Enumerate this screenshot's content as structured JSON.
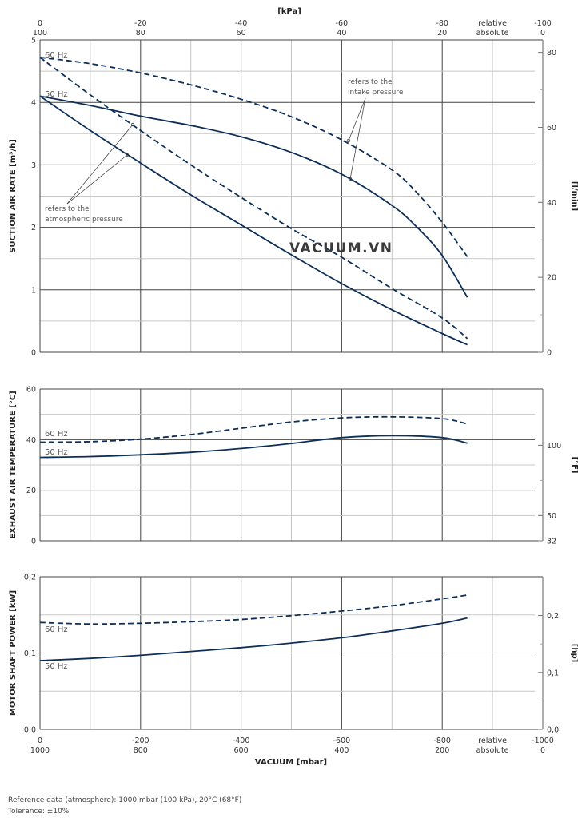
{
  "chart_data": [
    {
      "type": "line",
      "id": "suction",
      "title": "",
      "ylabel": "SUCTION AIR RATE  [m³/h]",
      "ylabel_right": "[l/min]",
      "xlabel_top": "[kPa]",
      "ylim": [
        0,
        5
      ],
      "yticks": [
        "0",
        "1",
        "2",
        "3",
        "4",
        "5"
      ],
      "yticks_right": [
        {
          "label": "0",
          "value": 0
        },
        {
          "label": "20",
          "value": 20
        },
        {
          "label": "40",
          "value": 40
        },
        {
          "label": "60",
          "value": 60
        },
        {
          "label": "80",
          "value": 80
        }
      ],
      "xlim": [
        0,
        -1000
      ],
      "top_ticks": [
        {
          "x": 0,
          "rel": "0",
          "abs": "100"
        },
        {
          "x": -200,
          "rel": "-20",
          "abs": "80"
        },
        {
          "x": -400,
          "rel": "-40",
          "abs": "60"
        },
        {
          "x": -600,
          "rel": "-60",
          "abs": "40"
        },
        {
          "x": -800,
          "rel": "-80",
          "abs": "20"
        },
        {
          "x": -900,
          "rel": "relative",
          "abs": "absolute"
        },
        {
          "x": -1000,
          "rel": "-100",
          "abs": "0"
        }
      ],
      "series": [
        {
          "name": "60 Hz (intake pressure)",
          "style": "dashed",
          "x": [
            0,
            -100,
            -200,
            -300,
            -400,
            -500,
            -600,
            -700,
            -750,
            -800,
            -850
          ],
          "values": [
            4.72,
            4.62,
            4.47,
            4.28,
            4.05,
            3.77,
            3.4,
            2.92,
            2.55,
            2.08,
            1.53
          ]
        },
        {
          "name": "50 Hz (intake pressure)",
          "style": "solid",
          "x": [
            0,
            -100,
            -200,
            -300,
            -400,
            -500,
            -600,
            -700,
            -750,
            -800,
            -850
          ],
          "values": [
            4.1,
            3.95,
            3.78,
            3.63,
            3.45,
            3.2,
            2.85,
            2.35,
            2.0,
            1.55,
            0.88
          ]
        },
        {
          "name": "60 Hz (atmospheric pressure)",
          "style": "dashed",
          "x": [
            0,
            -100,
            -200,
            -300,
            -400,
            -500,
            -600,
            -700,
            -800,
            -850
          ],
          "values": [
            4.72,
            4.12,
            3.55,
            3.0,
            2.48,
            1.98,
            1.52,
            1.02,
            0.55,
            0.22
          ]
        },
        {
          "name": "50 Hz (atmospheric pressure)",
          "style": "solid",
          "x": [
            0,
            -100,
            -200,
            -300,
            -400,
            -500,
            -600,
            -700,
            -800,
            -850
          ],
          "values": [
            4.1,
            3.55,
            3.03,
            2.52,
            2.04,
            1.56,
            1.1,
            0.68,
            0.3,
            0.12
          ]
        }
      ],
      "annotations": {
        "intake_line1": "refers to the",
        "intake_line2": "intake pressure",
        "atm_line1": "refers to the",
        "atm_line2": "atmospheric pressure",
        "label_60": "60 Hz",
        "label_50": "50 Hz"
      }
    },
    {
      "type": "line",
      "id": "temperature",
      "ylabel": "EXHAUST AIR TEMPERATURE  [°C]",
      "ylabel_right": "[°F]",
      "ylim": [
        0,
        60
      ],
      "yticks": [
        "0",
        "20",
        "40",
        "60"
      ],
      "yticks_right": [
        {
          "label": "32",
          "value": 32
        },
        {
          "label": "50",
          "value": 50
        },
        {
          "label": "100",
          "value": 100
        }
      ],
      "series": [
        {
          "name": "60 Hz",
          "style": "dashed",
          "x": [
            0,
            -100,
            -200,
            -300,
            -400,
            -500,
            -600,
            -700,
            -800,
            -850
          ],
          "values": [
            39,
            39.2,
            40.2,
            42,
            44.5,
            47,
            48.6,
            49,
            48.3,
            46.2
          ]
        },
        {
          "name": "50 Hz",
          "style": "solid",
          "x": [
            0,
            -100,
            -200,
            -300,
            -400,
            -500,
            -600,
            -700,
            -800,
            -850
          ],
          "values": [
            33,
            33.3,
            34,
            35,
            36.5,
            38.5,
            40.8,
            41.6,
            40.8,
            38.6
          ]
        }
      ],
      "annotations": {
        "label_60": "60 Hz",
        "label_50": "50 Hz"
      }
    },
    {
      "type": "line",
      "id": "power",
      "ylabel": "MOTOR SHAFT POWER  [kW]",
      "ylabel_right": "[hp]",
      "xlabel": "VACUUM  [mbar]",
      "ylim": [
        0,
        0.2
      ],
      "yticks": [
        "0,0",
        "0,1",
        "0,2"
      ],
      "yticks_right": [
        {
          "label": "0,0",
          "value": 0
        },
        {
          "label": "0,1",
          "value": 0.1
        },
        {
          "label": "0,2",
          "value": 0.2
        }
      ],
      "bottom_ticks": [
        {
          "x": 0,
          "rel": "0",
          "abs": "1000"
        },
        {
          "x": -200,
          "rel": "-200",
          "abs": "800"
        },
        {
          "x": -400,
          "rel": "-400",
          "abs": "600"
        },
        {
          "x": -600,
          "rel": "-600",
          "abs": "400"
        },
        {
          "x": -800,
          "rel": "-800",
          "abs": "200"
        },
        {
          "x": -900,
          "rel": "relative",
          "abs": "absolute"
        },
        {
          "x": -1000,
          "rel": "-1000",
          "abs": "0"
        }
      ],
      "series": [
        {
          "name": "60 Hz",
          "style": "dashed",
          "x": [
            0,
            -100,
            -200,
            -300,
            -400,
            -500,
            -600,
            -700,
            -800,
            -850
          ],
          "values": [
            0.14,
            0.138,
            0.139,
            0.141,
            0.144,
            0.149,
            0.155,
            0.162,
            0.171,
            0.176
          ]
        },
        {
          "name": "50 Hz",
          "style": "solid",
          "x": [
            0,
            -100,
            -200,
            -300,
            -400,
            -500,
            -600,
            -700,
            -800,
            -850
          ],
          "values": [
            0.09,
            0.093,
            0.097,
            0.102,
            0.107,
            0.113,
            0.12,
            0.129,
            0.139,
            0.146
          ]
        }
      ],
      "annotations": {
        "label_60": "60 Hz",
        "label_50": "50 Hz"
      }
    }
  ],
  "watermark": "VACUUM.VN",
  "footer": {
    "reference": "Reference data (atmosphere): 1000 mbar (100 kPa), 20°C (68°F)",
    "tolerance": "Tolerance: ±10%"
  },
  "colors": {
    "curve": "#0d2f57",
    "grid_major": "#444444",
    "grid_minor": "#c8c8c8"
  }
}
